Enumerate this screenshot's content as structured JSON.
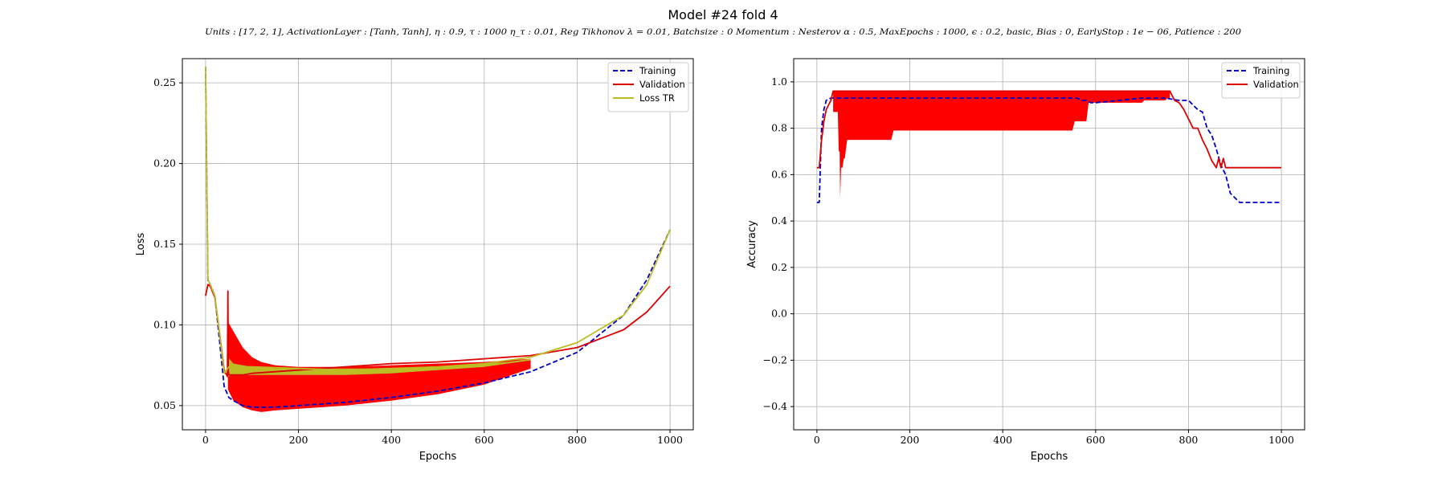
{
  "figure": {
    "title": "Model #24 fold 4",
    "subtitle": "Units : [17, 2, 1], ActivationLayer : [Tanh, Tanh], η : 0.9, τ : 1000 η_τ : 0.01, Reg Tikhonov λ = 0.01, Batchsize : 0 Momentum : Nesterov α : 0.5, MaxEpochs : 1000, ϵ : 0.2, basic, Bias : 0, EarlyStop : 1e − 06, Patience : 200"
  },
  "colors": {
    "training": "#0000cc",
    "validation": "#dd0000",
    "loss_tr": "#bcbd22",
    "band": "#ff0000",
    "grid": "#b0b0b0"
  },
  "chart_data": [
    {
      "type": "line",
      "xlabel": "Epochs",
      "ylabel": "Loss",
      "xlim": [
        -50,
        1050
      ],
      "ylim": [
        0.035,
        0.265
      ],
      "xticks": [
        0,
        200,
        400,
        600,
        800,
        1000
      ],
      "yticks": [
        0.05,
        0.1,
        0.15,
        0.2,
        0.25
      ],
      "ytick_labels": [
        "0.05",
        "0.10",
        "0.15",
        "0.20",
        "0.25"
      ],
      "grid": true,
      "legend_position": "top-right",
      "legend": [
        "Training",
        "Validation",
        "Loss TR"
      ],
      "series": [
        {
          "name": "Training",
          "style": "dashed",
          "color_key": "training",
          "x": [
            0,
            5,
            10,
            20,
            30,
            40,
            50,
            60,
            80,
            100,
            150,
            200,
            300,
            400,
            500,
            600,
            700,
            800,
            900,
            950,
            1000
          ],
          "y": [
            0.26,
            0.127,
            0.125,
            0.118,
            0.09,
            0.062,
            0.055,
            0.053,
            0.05,
            0.049,
            0.049,
            0.05,
            0.052,
            0.055,
            0.059,
            0.064,
            0.071,
            0.083,
            0.106,
            0.128,
            0.159
          ]
        },
        {
          "name": "Validation",
          "style": "solid",
          "color_key": "validation",
          "x": [
            0,
            5,
            10,
            20,
            30,
            40,
            47,
            48,
            49,
            50,
            60,
            80,
            100,
            150,
            200,
            300,
            400,
            500,
            600,
            700,
            800,
            900,
            950,
            1000
          ],
          "y": [
            0.118,
            0.125,
            0.124,
            0.117,
            0.095,
            0.072,
            0.068,
            0.121,
            0.072,
            0.069,
            0.069,
            0.069,
            0.07,
            0.071,
            0.072,
            0.074,
            0.076,
            0.077,
            0.079,
            0.081,
            0.086,
            0.097,
            0.108,
            0.124
          ]
        },
        {
          "name": "Loss TR",
          "style": "solid",
          "color_key": "loss_tr",
          "x": [
            0,
            5,
            10,
            20,
            30,
            40,
            50,
            60,
            100,
            200,
            300,
            400,
            500,
            600,
            700,
            800,
            900,
            950,
            1000
          ],
          "y": [
            0.26,
            0.128,
            0.125,
            0.118,
            0.095,
            0.07,
            0.074,
            0.074,
            0.074,
            0.073,
            0.072,
            0.073,
            0.074,
            0.076,
            0.08,
            0.089,
            0.106,
            0.125,
            0.159
          ]
        }
      ],
      "bands": [
        {
          "color_key": "band",
          "x": [
            48,
            60,
            80,
            100,
            120,
            150,
            200,
            300,
            400,
            500,
            600,
            650,
            700
          ],
          "lower": [
            0.06,
            0.053,
            0.049,
            0.047,
            0.046,
            0.047,
            0.048,
            0.05,
            0.053,
            0.057,
            0.063,
            0.068,
            0.073
          ],
          "upper": [
            0.102,
            0.096,
            0.086,
            0.08,
            0.077,
            0.075,
            0.074,
            0.074,
            0.075,
            0.076,
            0.077,
            0.078,
            0.079
          ]
        },
        {
          "color_key": "loss_tr",
          "x": [
            48,
            60,
            100,
            150,
            200,
            300,
            400,
            500,
            600,
            650,
            700
          ],
          "lower": [
            0.068,
            0.069,
            0.069,
            0.069,
            0.069,
            0.069,
            0.07,
            0.072,
            0.074,
            0.076,
            0.078
          ],
          "upper": [
            0.08,
            0.076,
            0.074,
            0.073,
            0.073,
            0.073,
            0.073,
            0.074,
            0.076,
            0.077,
            0.079
          ]
        }
      ]
    },
    {
      "type": "line",
      "xlabel": "Epochs",
      "ylabel": "Accuracy",
      "xlim": [
        -50,
        1050
      ],
      "ylim": [
        -0.5,
        1.1
      ],
      "xticks": [
        0,
        200,
        400,
        600,
        800,
        1000
      ],
      "yticks": [
        -0.4,
        -0.2,
        0.0,
        0.2,
        0.4,
        0.6,
        0.8,
        1.0
      ],
      "ytick_labels": [
        "−0.4",
        "−0.2",
        "0.0",
        "0.2",
        "0.4",
        "0.6",
        "0.8",
        "1.0"
      ],
      "grid": true,
      "legend_position": "top-right",
      "legend": [
        "Training",
        "Validation"
      ],
      "series": [
        {
          "name": "Training",
          "style": "dashed",
          "color_key": "training",
          "x": [
            0,
            5,
            10,
            15,
            20,
            30,
            40,
            50,
            100,
            200,
            300,
            400,
            500,
            550,
            560,
            570,
            580,
            590,
            600,
            650,
            700,
            750,
            780,
            790,
            800,
            810,
            820,
            830,
            840,
            850,
            860,
            870,
            880,
            890,
            900,
            910,
            1000
          ],
          "y": [
            0.48,
            0.48,
            0.8,
            0.88,
            0.92,
            0.93,
            0.93,
            0.93,
            0.93,
            0.93,
            0.93,
            0.93,
            0.93,
            0.93,
            0.93,
            0.92,
            0.92,
            0.91,
            0.91,
            0.92,
            0.93,
            0.93,
            0.92,
            0.92,
            0.92,
            0.9,
            0.88,
            0.87,
            0.8,
            0.77,
            0.71,
            0.64,
            0.6,
            0.52,
            0.5,
            0.48,
            0.48
          ]
        },
        {
          "name": "Validation",
          "style": "solid",
          "color_key": "validation",
          "x": [
            0,
            5,
            10,
            15,
            20,
            30,
            35,
            40,
            45,
            50,
            700,
            750,
            760,
            770,
            780,
            790,
            800,
            810,
            820,
            830,
            840,
            850,
            860,
            865,
            870,
            875,
            880,
            1000
          ],
          "y": [
            0.63,
            0.63,
            0.75,
            0.83,
            0.88,
            0.92,
            0.96,
            0.96,
            0.96,
            0.96,
            0.96,
            0.96,
            0.96,
            0.92,
            0.91,
            0.88,
            0.84,
            0.8,
            0.8,
            0.75,
            0.71,
            0.66,
            0.63,
            0.67,
            0.63,
            0.67,
            0.63,
            0.63
          ]
        }
      ],
      "bands": [
        {
          "color_key": "band",
          "x": [
            35,
            45,
            47,
            49,
            50,
            52,
            55,
            58,
            60,
            65,
            70,
            160,
            165,
            550,
            555,
            580,
            585,
            700,
            705,
            750,
            755,
            760
          ],
          "lower": [
            0.87,
            0.87,
            0.7,
            0.7,
            0.5,
            0.63,
            0.63,
            0.67,
            0.67,
            0.75,
            0.75,
            0.75,
            0.79,
            0.79,
            0.83,
            0.83,
            0.91,
            0.91,
            0.92,
            0.92,
            0.93,
            0.93
          ],
          "upper": [
            0.96,
            0.96,
            0.96,
            0.96,
            0.96,
            0.96,
            0.96,
            0.96,
            0.96,
            0.96,
            0.96,
            0.96,
            0.96,
            0.96,
            0.96,
            0.96,
            0.96,
            0.96,
            0.96,
            0.96,
            0.96,
            0.96
          ]
        }
      ]
    }
  ]
}
